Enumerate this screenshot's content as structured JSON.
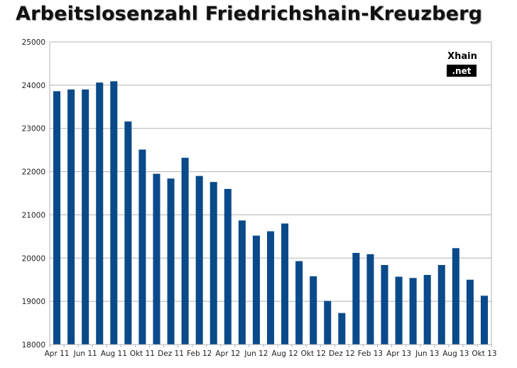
{
  "chart_data": {
    "type": "bar",
    "title": "Arbeitslosenzahl Friedrichshain-Kreuzberg",
    "categories": [
      "Apr 11",
      "Mai 11",
      "Jun 11",
      "Jul 11",
      "Aug 11",
      "Sep 11",
      "Okt 11",
      "Nov 11",
      "Dez 11",
      "Jan 12",
      "Feb 12",
      "Mrz 12",
      "Apr 12",
      "Mai 12",
      "Jun 12",
      "Jul 12",
      "Aug 12",
      "Sep 12",
      "Okt 12",
      "Nov 12",
      "Dez 12",
      "Jan 13",
      "Feb 13",
      "Mrz 13",
      "Apr 13",
      "Mai 13",
      "Jun 13",
      "Jul 13",
      "Aug 13",
      "Sep 13",
      "Okt 13"
    ],
    "tick_labels": [
      "Apr 11",
      "Jun 11",
      "Aug 11",
      "Okt 11",
      "Dez 11",
      "Feb 12",
      "Apr 12",
      "Jun 12",
      "Aug 12",
      "Okt 12",
      "Dez 12",
      "Feb 13",
      "Apr 13",
      "Jun 13",
      "Aug 13",
      "Okt 13"
    ],
    "values": [
      23860,
      23900,
      23900,
      24060,
      24090,
      23160,
      22510,
      21950,
      21840,
      22320,
      21900,
      21760,
      21600,
      20870,
      20520,
      20620,
      20800,
      19930,
      19580,
      19010,
      18730,
      20120,
      20090,
      19840,
      19570,
      19540,
      19610,
      19840,
      20230,
      19500,
      19130
    ],
    "ylim": [
      18000,
      25000
    ],
    "yticks": [
      18000,
      19000,
      20000,
      21000,
      22000,
      23000,
      24000,
      25000
    ],
    "grid": true,
    "bar_color": "#0a4a8a",
    "xlabel": "",
    "ylabel": ""
  },
  "branding": {
    "line1": "Xhain",
    "line2": ".net"
  }
}
